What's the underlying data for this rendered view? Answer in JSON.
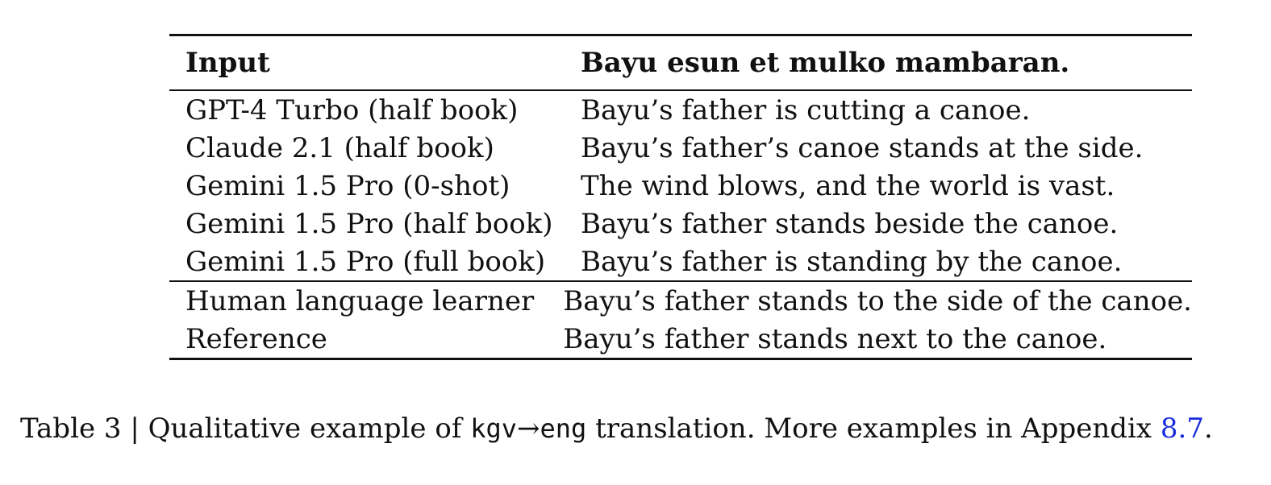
{
  "table": {
    "header": {
      "col1": "Input",
      "col2": "Bayu esun et mulko mambaran."
    },
    "model_rows": [
      {
        "system": "GPT-4 Turbo (half book)",
        "output": "Bayu’s father is cutting a canoe."
      },
      {
        "system": "Claude 2.1 (half book)",
        "output": "Bayu’s father’s canoe stands at the side."
      },
      {
        "system": "Gemini 1.5 Pro (0-shot)",
        "output": "The wind blows, and the world is vast."
      },
      {
        "system": "Gemini 1.5 Pro (half book)",
        "output": "Bayu’s father stands beside the canoe."
      },
      {
        "system": "Gemini 1.5 Pro (full book)",
        "output": "Bayu’s father is standing by the canoe."
      }
    ],
    "reference_rows": [
      {
        "system": "Human language learner",
        "output": "Bayu’s father stands to the side of the canoe."
      },
      {
        "system": "Reference",
        "output": "Bayu’s father stands next to the canoe."
      }
    ]
  },
  "caption": {
    "prefix": "Table 3 | Qualitative example of ",
    "src_code": "kgv",
    "arrow": "→",
    "tgt_code": "eng",
    "middle": " translation. More examples in Appendix ",
    "link": "8.7",
    "suffix": "."
  }
}
